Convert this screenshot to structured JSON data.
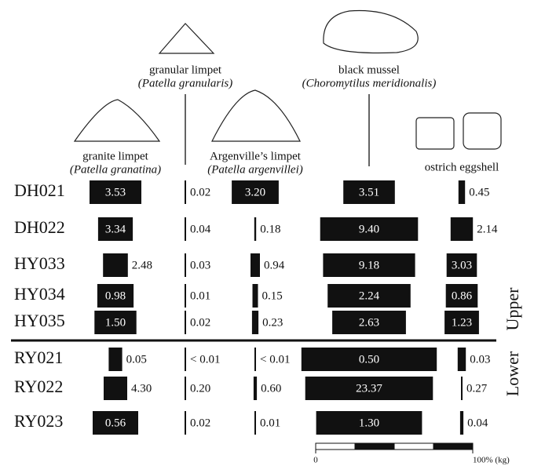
{
  "chart_data": {
    "type": "kite",
    "categories": [
      "DH021",
      "DH022",
      "HY033",
      "HY034",
      "HY035",
      "RY021",
      "RY022",
      "RY023"
    ],
    "groups": [
      {
        "name": "Upper",
        "rows": [
          0,
          1,
          2,
          3,
          4
        ]
      },
      {
        "name": "Lower",
        "rows": [
          5,
          6,
          7
        ]
      }
    ],
    "series": [
      {
        "name": "granite limpet",
        "latin": "(Patella granatina)",
        "color": "#111111",
        "values": [
          3.53,
          3.34,
          2.48,
          0.98,
          1.5,
          0.05,
          4.3,
          0.56
        ],
        "value_labels": [
          "3.53",
          "3.34",
          "2.48",
          "0.98",
          "1.50",
          "0.05",
          "4.30",
          "0.56"
        ],
        "percent": [
          33.0,
          22.1,
          15.8,
          23.1,
          26.7,
          8.6,
          15.0,
          29.0
        ]
      },
      {
        "name": "granular limpet",
        "latin": "(Patella granularis)",
        "color": "#111111",
        "values": [
          0.02,
          0.04,
          0.03,
          0.01,
          0.02,
          null,
          0.2,
          0.02
        ],
        "value_labels": [
          "0.02",
          "0.04",
          "0.03",
          "0.01",
          "0.02",
          "< 0.01",
          "0.20",
          "0.02"
        ],
        "percent": [
          0.2,
          0.3,
          0.2,
          0.2,
          0.4,
          0.5,
          0.7,
          1.0
        ]
      },
      {
        "name": "Argenville’s limpet",
        "latin": "(Patella argenvillei)",
        "color": "#111111",
        "values": [
          3.2,
          0.18,
          0.94,
          0.15,
          0.23,
          null,
          0.6,
          0.01
        ],
        "value_labels": [
          "3.20",
          "0.18",
          "0.94",
          "0.15",
          "0.23",
          "< 0.01",
          "0.60",
          "0.01"
        ],
        "percent": [
          29.9,
          1.2,
          6.0,
          3.5,
          4.1,
          0.5,
          2.1,
          0.5
        ]
      },
      {
        "name": "black mussel",
        "latin": "(Choromytilus meridionalis)",
        "color": "#111111",
        "values": [
          3.51,
          9.4,
          9.18,
          2.24,
          2.63,
          0.5,
          23.37,
          1.3
        ],
        "value_labels": [
          "3.51",
          "9.40",
          "9.18",
          "2.24",
          "2.63",
          "0.50",
          "23.37",
          "1.30"
        ],
        "percent": [
          32.8,
          62.3,
          58.6,
          52.8,
          46.9,
          86.2,
          81.3,
          67.4
        ]
      },
      {
        "name": "ostrich eggshell",
        "color": "#111111",
        "values": [
          0.45,
          2.14,
          3.03,
          0.86,
          1.23,
          0.03,
          0.27,
          0.04
        ],
        "value_labels": [
          "0.45",
          "2.14",
          "3.03",
          "0.86",
          "1.23",
          "0.03",
          "0.27",
          "0.04"
        ],
        "percent": [
          4.2,
          14.2,
          19.3,
          20.3,
          21.9,
          5.2,
          0.9,
          2.1
        ]
      }
    ],
    "scale": {
      "lim": [
        0,
        100
      ],
      "ticks": [
        {
          "value": 0,
          "label": "0"
        },
        {
          "value": 100,
          "label": "100% (kg)"
        }
      ]
    }
  }
}
